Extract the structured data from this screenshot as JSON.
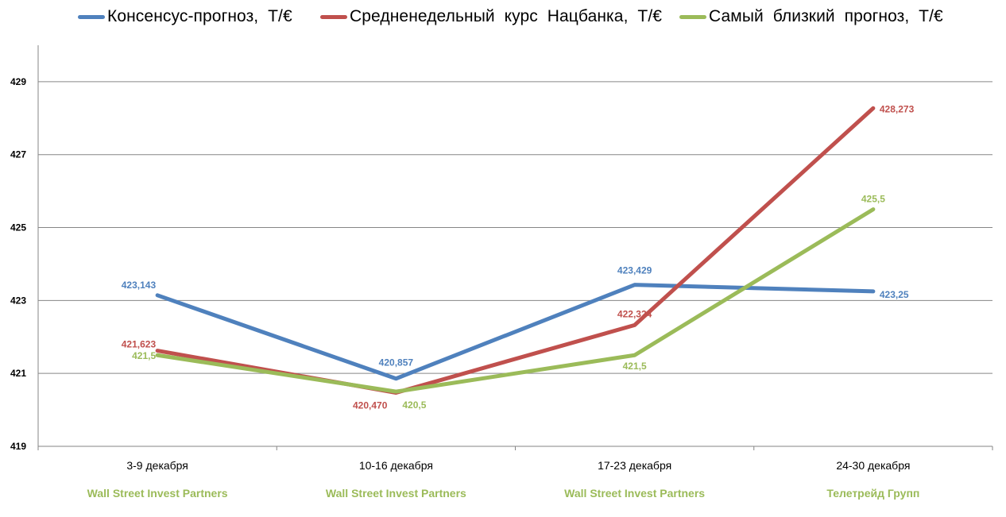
{
  "chart_data": {
    "type": "line",
    "categories": [
      "3-9 декабря",
      "10-16 декабря",
      "17-23 декабря",
      "24-30 декабря"
    ],
    "category_sublabels": [
      "Wall Street Invest Partners",
      "Wall Street Invest Partners",
      "Wall Street Invest Partners",
      "Телетрейд Групп"
    ],
    "ylim": [
      419,
      430
    ],
    "yticks": [
      419,
      421,
      423,
      425,
      427,
      429
    ],
    "grid": true,
    "legend_position": "top",
    "series": [
      {
        "name": "Консенсус-прогноз,  Т/€",
        "color": "#4f81bd",
        "values": [
          423.143,
          420.857,
          423.429,
          423.25
        ],
        "labels": [
          "423,143",
          "420,857",
          "423,429",
          "423,25"
        ]
      },
      {
        "name": "Средненедельный  курс  Нацбанка,  Т/€",
        "color": "#c0504d",
        "values": [
          421.623,
          420.47,
          422.324,
          428.273
        ],
        "labels": [
          "421,623",
          "420,470",
          "422,324",
          "428,273"
        ]
      },
      {
        "name": "Самый  близкий  прогноз,  Т/€",
        "color": "#9bbb59",
        "values": [
          421.5,
          420.5,
          421.5,
          425.5
        ],
        "labels": [
          "421,5",
          "420,5",
          "421,5",
          "425,5"
        ]
      }
    ]
  }
}
